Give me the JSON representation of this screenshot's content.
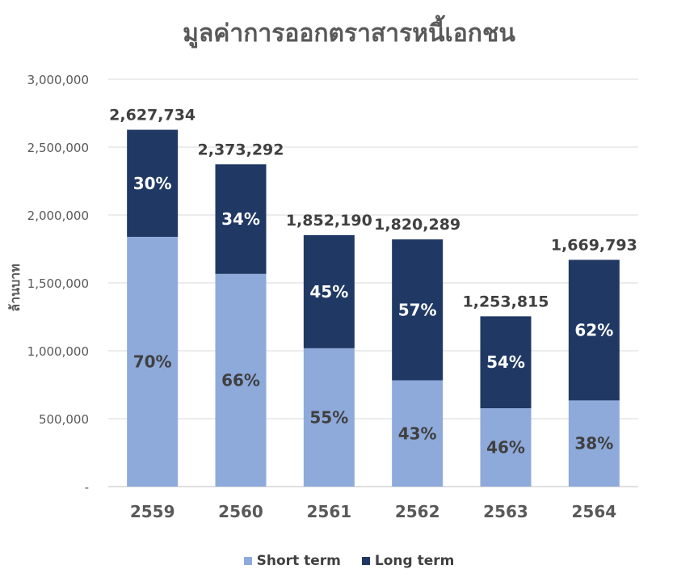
{
  "chart_data": {
    "type": "bar",
    "stacked": true,
    "title": "มูลค่าการออกตราสารหนี้เอกชน",
    "xlabel": "",
    "ylabel": "ล้านบาท",
    "ylim": [
      0,
      3000000
    ],
    "y_ticks": [
      "-",
      "500,000",
      "1,000,000",
      "1,500,000",
      "2,000,000",
      "2,500,000",
      "3,000,000"
    ],
    "grid": true,
    "legend_position": "bottom",
    "categories": [
      "2559",
      "2560",
      "2561",
      "2562",
      "2563",
      "2564"
    ],
    "totals": [
      2627734,
      2373292,
      1852190,
      1820289,
      1253815,
      1669793
    ],
    "total_labels": [
      "2,627,734",
      "2,373,292",
      "1,852,190",
      "1,820,289",
      "1,253,815",
      "1,669,793"
    ],
    "series": [
      {
        "name": "Short term",
        "color": "#8eaadb",
        "percent": [
          70,
          66,
          55,
          43,
          46,
          38
        ],
        "labels": [
          "70%",
          "66%",
          "55%",
          "43%",
          "46%",
          "38%"
        ]
      },
      {
        "name": "Long term",
        "color": "#1f3864",
        "percent": [
          30,
          34,
          45,
          57,
          54,
          62
        ],
        "labels": [
          "30%",
          "34%",
          "45%",
          "57%",
          "54%",
          "62%"
        ]
      }
    ]
  }
}
